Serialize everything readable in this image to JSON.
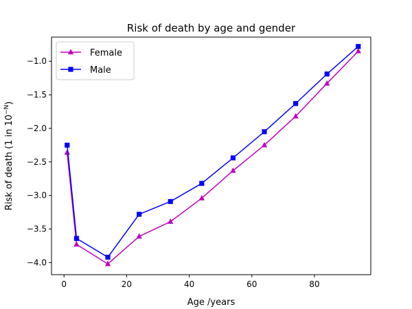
{
  "chart_data": {
    "type": "line",
    "title": "Risk of death by age and gender",
    "xlabel": "Age /years",
    "ylabel_main": "Risk of death (1 in 10",
    "ylabel_sup": "−N",
    "ylabel_end": ")",
    "xlim": [
      -4,
      98
    ],
    "ylim": [
      -4.18,
      -0.64
    ],
    "x_ticks": [
      0,
      20,
      40,
      60,
      80
    ],
    "x_tick_labels": [
      "0",
      "20",
      "40",
      "60",
      "80"
    ],
    "y_ticks": [
      -4.0,
      -3.5,
      -3.0,
      -2.5,
      -2.0,
      -1.5,
      -1.0
    ],
    "y_tick_labels": [
      "−4.0",
      "−3.5",
      "−3.0",
      "−2.5",
      "−2.0",
      "−1.5",
      "−1.0"
    ],
    "grid": false,
    "legend_position": "top-left",
    "series": [
      {
        "name": "Female",
        "color": "#bf00bf",
        "marker": "triangle",
        "x": [
          1,
          4,
          14,
          24,
          34,
          44,
          54,
          64,
          74,
          84,
          94
        ],
        "y": [
          -2.36,
          -3.73,
          -4.02,
          -3.61,
          -3.39,
          -3.04,
          -2.63,
          -2.25,
          -1.82,
          -1.33,
          -0.85
        ]
      },
      {
        "name": "Male",
        "color": "#0000ff",
        "marker": "square",
        "x": [
          1,
          4,
          14,
          24,
          34,
          44,
          54,
          64,
          74,
          84,
          94
        ],
        "y": [
          -2.25,
          -3.64,
          -3.92,
          -3.28,
          -3.09,
          -2.82,
          -2.44,
          -2.05,
          -1.63,
          -1.19,
          -0.78
        ]
      }
    ]
  }
}
